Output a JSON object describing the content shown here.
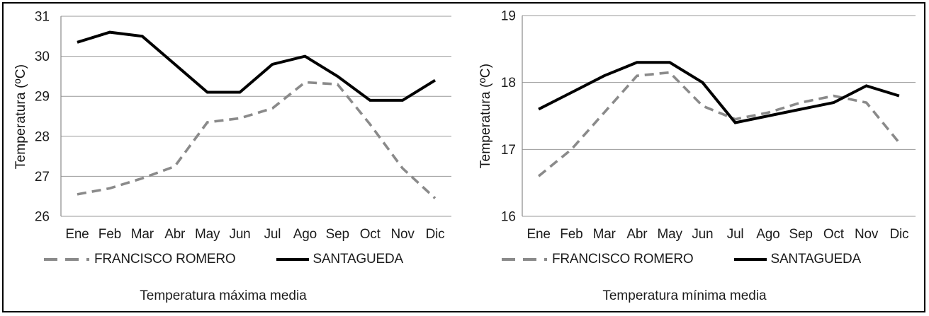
{
  "figure": {
    "background": "#ffffff",
    "border_color": "#000000",
    "grid_color": "#999999",
    "axis_color": "#8a8a8a",
    "text_color": "#1c1c1c"
  },
  "chart_data": [
    {
      "type": "line",
      "title": "Temperatura máxima media",
      "ylabel": "Temperatura (ºC)",
      "xlabel": "",
      "categories": [
        "Ene",
        "Feb",
        "Mar",
        "Abr",
        "May",
        "Jun",
        "Jul",
        "Ago",
        "Sep",
        "Oct",
        "Nov",
        "Dic"
      ],
      "ylim": [
        26,
        31
      ],
      "yticks": [
        26,
        27,
        28,
        29,
        30,
        31
      ],
      "grid": true,
      "legend_position": "bottom",
      "series": [
        {
          "name": "FRANCISCO ROMERO",
          "style": "dashed",
          "color": "#8a8a8a",
          "values": [
            26.55,
            26.7,
            26.95,
            27.25,
            28.35,
            28.45,
            28.7,
            29.35,
            29.3,
            28.3,
            27.2,
            26.45
          ]
        },
        {
          "name": "SANTAGUEDA",
          "style": "solid",
          "color": "#000000",
          "values": [
            30.35,
            30.6,
            30.5,
            29.8,
            29.1,
            29.1,
            29.8,
            30.0,
            29.5,
            28.9,
            28.9,
            29.4
          ]
        }
      ]
    },
    {
      "type": "line",
      "title": "Temperatura mínima media",
      "ylabel": "Temperatura (ºC)",
      "xlabel": "",
      "categories": [
        "Ene",
        "Feb",
        "Mar",
        "Abr",
        "May",
        "Jun",
        "Jul",
        "Ago",
        "Sep",
        "Oct",
        "Nov",
        "Dic"
      ],
      "ylim": [
        16,
        19
      ],
      "yticks": [
        16,
        17,
        18,
        19
      ],
      "grid": true,
      "legend_position": "bottom",
      "series": [
        {
          "name": "FRANCISCO ROMERO",
          "style": "dashed",
          "color": "#8a8a8a",
          "values": [
            16.6,
            17.0,
            17.55,
            18.1,
            18.15,
            17.65,
            17.45,
            17.55,
            17.7,
            17.8,
            17.7,
            17.1
          ]
        },
        {
          "name": "SANTAGUEDA",
          "style": "solid",
          "color": "#000000",
          "values": [
            17.6,
            17.85,
            18.1,
            18.3,
            18.3,
            18.0,
            17.4,
            17.5,
            17.6,
            17.7,
            17.95,
            17.8
          ]
        }
      ]
    }
  ]
}
